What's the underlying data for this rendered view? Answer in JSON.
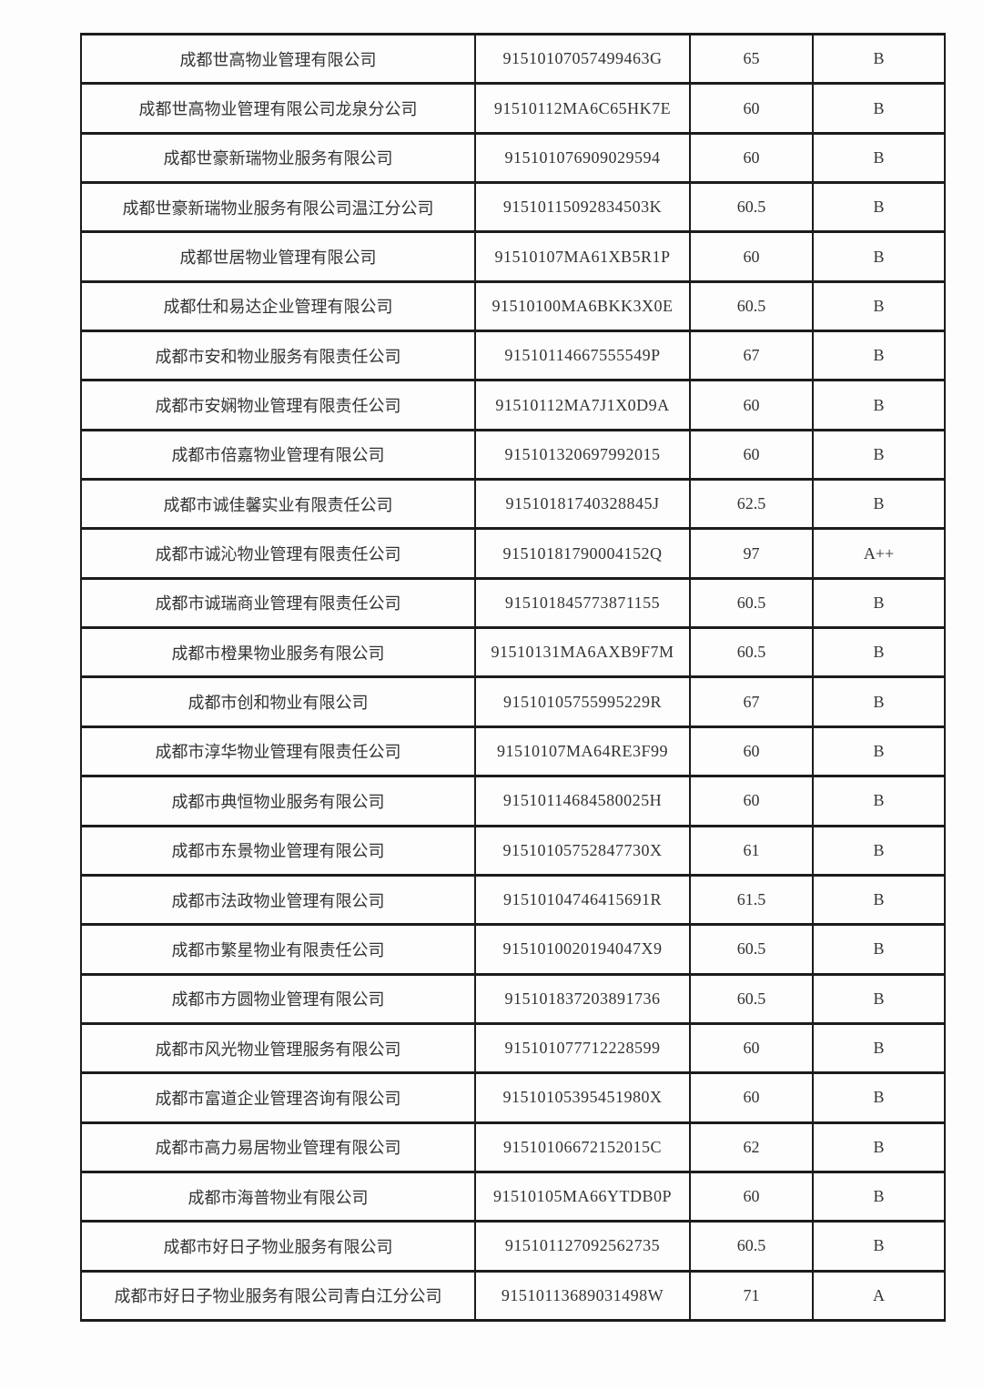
{
  "page": {
    "background_color": "#fdfdfd",
    "border_color": "#1c1c1c",
    "text_color": "#333333"
  },
  "table": {
    "columns": [
      "company-name",
      "credit-code",
      "score",
      "rating"
    ],
    "rows": [
      {
        "name": "成都世高物业管理有限公司",
        "code": "91510107057499463G",
        "score": "65",
        "rating": "B"
      },
      {
        "name": "成都世高物业管理有限公司龙泉分公司",
        "code": "91510112MA6C65HK7E",
        "score": "60",
        "rating": "B"
      },
      {
        "name": "成都世豪新瑞物业服务有限公司",
        "code": "915101076909029594",
        "score": "60",
        "rating": "B"
      },
      {
        "name": "成都世豪新瑞物业服务有限公司温江分公司",
        "code": "91510115092834503K",
        "score": "60.5",
        "rating": "B"
      },
      {
        "name": "成都世居物业管理有限公司",
        "code": "91510107MA61XB5R1P",
        "score": "60",
        "rating": "B"
      },
      {
        "name": "成都仕和易达企业管理有限公司",
        "code": "91510100MA6BKK3X0E",
        "score": "60.5",
        "rating": "B"
      },
      {
        "name": "成都市安和物业服务有限责任公司",
        "code": "91510114667555549P",
        "score": "67",
        "rating": "B"
      },
      {
        "name": "成都市安娴物业管理有限责任公司",
        "code": "91510112MA7J1X0D9A",
        "score": "60",
        "rating": "B"
      },
      {
        "name": "成都市倍嘉物业管理有限公司",
        "code": "915101320697992015",
        "score": "60",
        "rating": "B"
      },
      {
        "name": "成都市诚佳馨实业有限责任公司",
        "code": "91510181740328845J",
        "score": "62.5",
        "rating": "B"
      },
      {
        "name": "成都市诚沁物业管理有限责任公司",
        "code": "91510181790004152Q",
        "score": "97",
        "rating": "A++"
      },
      {
        "name": "成都市诚瑞商业管理有限责任公司",
        "code": "915101845773871155",
        "score": "60.5",
        "rating": "B"
      },
      {
        "name": "成都市橙果物业服务有限公司",
        "code": "91510131MA6AXB9F7M",
        "score": "60.5",
        "rating": "B"
      },
      {
        "name": "成都市创和物业有限公司",
        "code": "91510105755995229R",
        "score": "67",
        "rating": "B"
      },
      {
        "name": "成都市淳华物业管理有限责任公司",
        "code": "91510107MA64RE3F99",
        "score": "60",
        "rating": "B"
      },
      {
        "name": "成都市典恒物业服务有限公司",
        "code": "91510114684580025H",
        "score": "60",
        "rating": "B"
      },
      {
        "name": "成都市东景物业管理有限公司",
        "code": "91510105752847730X",
        "score": "61",
        "rating": "B"
      },
      {
        "name": "成都市法政物业管理有限公司",
        "code": "91510104746415691R",
        "score": "61.5",
        "rating": "B"
      },
      {
        "name": "成都市繁星物业有限责任公司",
        "code": "9151010020194047X9",
        "score": "60.5",
        "rating": "B"
      },
      {
        "name": "成都市方圆物业管理有限公司",
        "code": "915101837203891736",
        "score": "60.5",
        "rating": "B"
      },
      {
        "name": "成都市风光物业管理服务有限公司",
        "code": "915101077712228599",
        "score": "60",
        "rating": "B"
      },
      {
        "name": "成都市富道企业管理咨询有限公司",
        "code": "91510105395451980X",
        "score": "60",
        "rating": "B"
      },
      {
        "name": "成都市高力易居物业管理有限公司",
        "code": "91510106672152015C",
        "score": "62",
        "rating": "B"
      },
      {
        "name": "成都市海普物业有限公司",
        "code": "91510105MA66YTDB0P",
        "score": "60",
        "rating": "B"
      },
      {
        "name": "成都市好日子物业服务有限公司",
        "code": "915101127092562735",
        "score": "60.5",
        "rating": "B"
      },
      {
        "name": "成都市好日子物业服务有限公司青白江分公司",
        "code": "91510113689031498W",
        "score": "71",
        "rating": "A"
      }
    ]
  }
}
